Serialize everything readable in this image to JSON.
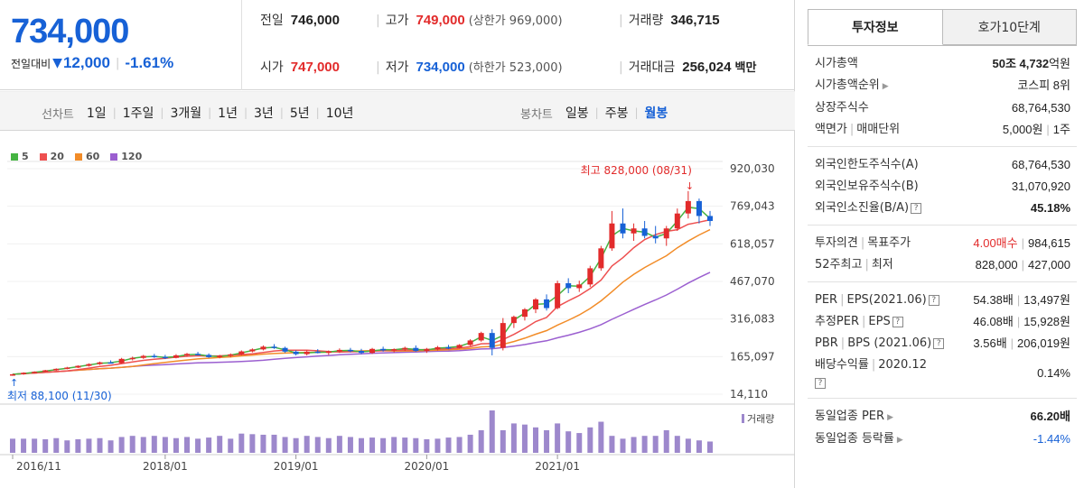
{
  "quote": {
    "price": "734,000",
    "change_label": "전일대비",
    "change_amount": "12,000",
    "change_pct": "-1.61%",
    "prev_close_label": "전일",
    "prev_close": "746,000",
    "high_label": "고가",
    "high": "749,000",
    "upper_limit": "(상한가 969,000)",
    "volume_label": "거래량",
    "volume": "346,715",
    "open_label": "시가",
    "open": "747,000",
    "low_label": "저가",
    "low": "734,000",
    "lower_limit": "(하한가 523,000)",
    "value_label": "거래대금",
    "value": "256,024",
    "value_unit": "백만"
  },
  "periods": {
    "line_label": "선차트",
    "line_items": [
      "1일",
      "1주일",
      "3개월",
      "1년",
      "3년",
      "5년",
      "10년"
    ],
    "candle_label": "봉차트",
    "candle_items": [
      "일봉",
      "주봉",
      "월봉"
    ],
    "candle_active": 2
  },
  "colors": {
    "up": "#e22b2b",
    "down": "#1761d6",
    "ma5": "#45b442",
    "ma20": "#ee5050",
    "ma60": "#f28c28",
    "ma120": "#9b5fd0",
    "volume": "#9d88cc"
  },
  "tabs": {
    "active": "투자정보",
    "inactive": "호가10단계"
  },
  "info": {
    "market_cap_label": "시가총액",
    "market_cap_jo": "50조",
    "market_cap_rest": "4,732",
    "market_cap_unit": "억원",
    "cap_rank_label": "시가총액순위",
    "cap_rank": "코스피 8위",
    "shares_label": "상장주식수",
    "shares": "68,764,530",
    "par_label": "액면가",
    "unit_label": "매매단위",
    "par": "5,000원",
    "unit": "1주",
    "foreign_limit_label": "외국인한도주식수(A)",
    "foreign_limit": "68,764,530",
    "foreign_hold_label": "외국인보유주식수(B)",
    "foreign_hold": "31,070,920",
    "foreign_ratio_label": "외국인소진율(B/A)",
    "foreign_ratio": "45.18%",
    "opinion_label": "투자의견",
    "target_label": "목표주가",
    "opinion": "4.00매수",
    "target": "984,615",
    "w52_label": "52주최고",
    "w52_low_label": "최저",
    "w52_high": "828,000",
    "w52_low": "427,000",
    "per_label": "PER",
    "eps_label": "EPS(2021.06)",
    "per": "54.38배",
    "eps": "13,497원",
    "est_per_label": "추정PER",
    "est_eps_label": "EPS",
    "est_per": "46.08배",
    "est_eps": "15,928원",
    "pbr_label": "PBR",
    "bps_label": "BPS (2021.06)",
    "pbr": "3.56배",
    "bps": "206,019원",
    "div_label": "배당수익률",
    "div_year": "2020.12",
    "div": "0.14%",
    "ind_per_label": "동일업종 PER",
    "ind_per": "66.20배",
    "ind_chg_label": "동일업종 등락률",
    "ind_chg": "-1.44%"
  },
  "chart_data": {
    "type": "candlestick",
    "legend": [
      "5",
      "20",
      "60",
      "120"
    ],
    "y_ticks": [
      "920,030",
      "769,043",
      "618,057",
      "467,070",
      "316,083",
      "165,097",
      "14,110"
    ],
    "y_range": [
      14110,
      920030
    ],
    "x_ticks": [
      "2016/11",
      "2018/01",
      "2019/01",
      "2020/01",
      "2021/01"
    ],
    "max_label": "최고 828,000 (08/31)",
    "min_label": "최저 88,100 (11/30)",
    "volume_label": "거래량",
    "candles": [
      [
        90,
        95,
        88,
        94
      ],
      [
        94,
        102,
        92,
        100
      ],
      [
        100,
        106,
        98,
        104
      ],
      [
        104,
        112,
        102,
        110
      ],
      [
        110,
        118,
        108,
        116
      ],
      [
        116,
        124,
        114,
        121
      ],
      [
        121,
        130,
        119,
        128
      ],
      [
        128,
        138,
        125,
        135
      ],
      [
        135,
        145,
        132,
        142
      ],
      [
        142,
        150,
        138,
        139
      ],
      [
        139,
        160,
        137,
        156
      ],
      [
        156,
        165,
        150,
        160
      ],
      [
        160,
        172,
        156,
        168
      ],
      [
        168,
        176,
        160,
        164
      ],
      [
        164,
        172,
        155,
        160
      ],
      [
        160,
        175,
        158,
        170
      ],
      [
        170,
        180,
        165,
        176
      ],
      [
        176,
        184,
        170,
        172
      ],
      [
        172,
        178,
        160,
        163
      ],
      [
        163,
        172,
        158,
        168
      ],
      [
        168,
        178,
        162,
        174
      ],
      [
        174,
        190,
        170,
        186
      ],
      [
        186,
        198,
        182,
        194
      ],
      [
        194,
        210,
        190,
        205
      ],
      [
        205,
        215,
        196,
        200
      ],
      [
        200,
        205,
        180,
        185
      ],
      [
        185,
        190,
        170,
        175
      ],
      [
        175,
        190,
        170,
        185
      ],
      [
        185,
        195,
        178,
        180
      ],
      [
        180,
        190,
        172,
        186
      ],
      [
        186,
        198,
        180,
        192
      ],
      [
        192,
        200,
        182,
        188
      ],
      [
        188,
        196,
        175,
        180
      ],
      [
        180,
        200,
        176,
        196
      ],
      [
        196,
        205,
        185,
        190
      ],
      [
        190,
        198,
        182,
        195
      ],
      [
        195,
        205,
        188,
        200
      ],
      [
        200,
        210,
        185,
        188
      ],
      [
        188,
        200,
        180,
        195
      ],
      [
        195,
        208,
        190,
        203
      ],
      [
        203,
        212,
        195,
        200
      ],
      [
        200,
        215,
        198,
        212
      ],
      [
        212,
        235,
        208,
        230
      ],
      [
        230,
        265,
        225,
        260
      ],
      [
        260,
        275,
        170,
        200
      ],
      [
        200,
        320,
        190,
        300
      ],
      [
        300,
        330,
        280,
        325
      ],
      [
        325,
        360,
        310,
        355
      ],
      [
        355,
        400,
        340,
        395
      ],
      [
        395,
        415,
        350,
        360
      ],
      [
        360,
        470,
        355,
        460
      ],
      [
        460,
        480,
        420,
        440
      ],
      [
        440,
        470,
        425,
        455
      ],
      [
        455,
        530,
        445,
        520
      ],
      [
        520,
        610,
        510,
        600
      ],
      [
        600,
        750,
        590,
        700
      ],
      [
        700,
        760,
        640,
        660
      ],
      [
        660,
        700,
        630,
        680
      ],
      [
        680,
        710,
        640,
        650
      ],
      [
        650,
        690,
        620,
        640
      ],
      [
        640,
        690,
        610,
        680
      ],
      [
        680,
        760,
        670,
        740
      ],
      [
        740,
        830,
        720,
        790
      ],
      [
        790,
        800,
        700,
        730
      ],
      [
        730,
        750,
        690,
        710
      ]
    ],
    "volumes": [
      25,
      25,
      25,
      24,
      26,
      22,
      24,
      25,
      26,
      22,
      28,
      30,
      28,
      30,
      28,
      26,
      28,
      25,
      27,
      30,
      25,
      34,
      33,
      32,
      32,
      28,
      26,
      30,
      28,
      26,
      30,
      28,
      26,
      27,
      26,
      28,
      27,
      26,
      24,
      25,
      27,
      28,
      32,
      40,
      75,
      40,
      52,
      50,
      45,
      40,
      52,
      38,
      35,
      45,
      55,
      30,
      25,
      28,
      30,
      30,
      40,
      30,
      25,
      22,
      20
    ]
  }
}
